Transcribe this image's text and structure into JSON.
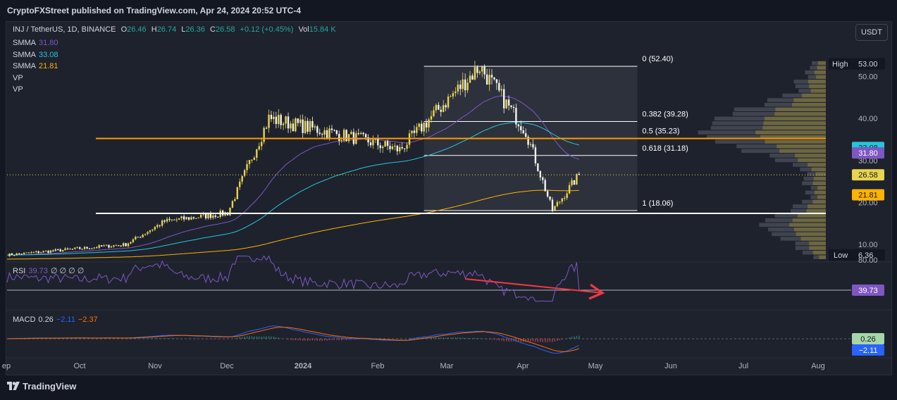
{
  "publisher": "CryptoFXStreet published on TradingView.com, Apr 24, 2024 20:52 UTC-4",
  "currency_button": "USDT",
  "footer": "TradingView",
  "legend": {
    "symbol": "INJ / TetherUS, 1D, BINANCE",
    "o_label": "O",
    "o": "26.46",
    "h_label": "H",
    "h": "26.74",
    "l_label": "L",
    "l": "26.36",
    "c_label": "C",
    "c": "26.58",
    "change": "+0.12 (+0.45%)",
    "vol_label": "Vol",
    "vol": "15.84 K",
    "indicators": [
      {
        "name": "SMMA",
        "value": "31.80",
        "color": "#7e57c2"
      },
      {
        "name": "SMMA",
        "value": "33.08",
        "color": "#26c6da"
      },
      {
        "name": "SMMA",
        "value": "21.81",
        "color": "#ffb300"
      },
      {
        "name": "VP",
        "value": ""
      },
      {
        "name": "VP",
        "value": ""
      }
    ],
    "rsi_label": "RSI",
    "rsi_value": "39.73",
    "rsi_extra": "∅ ∅ ∅ ∅",
    "macd_label": "MACD",
    "macd_values": [
      "0.26",
      "−2.11",
      "−2.37"
    ]
  },
  "colors": {
    "bull": "#e8d44d",
    "bear": "#f5f5f0",
    "smma_purple": "#7e57c2",
    "smma_teal": "#26c6da",
    "smma_orange": "#ffb300",
    "resistance": "#ff9800",
    "support": "#ffffff",
    "rsi": "#7e57c2",
    "macd": "#2962ff",
    "signal": "#ff6d00",
    "arrow": "#f23645"
  },
  "chart_data": {
    "type": "candlestick",
    "price_axis": {
      "ticks": [
        "50.00",
        "40.00",
        "30.00",
        "20.00",
        "10.00"
      ],
      "ylim": [
        6.36,
        53.0
      ]
    },
    "time_axis": [
      "ep",
      "Oct",
      "Nov",
      "Dec",
      "2024",
      "Feb",
      "Mar",
      "Apr",
      "May",
      "Jun",
      "Jul",
      "Aug"
    ],
    "high_label": "High",
    "high_value": "53.00",
    "low_label": "Low",
    "low_value": "6.36",
    "price_tags": [
      "33.08",
      "31.80",
      "26.58",
      "21.81"
    ],
    "current_price": 26.58,
    "key_price_path": [
      {
        "date": "2023-09-01",
        "price": 7.5
      },
      {
        "date": "2023-10-20",
        "price": 10.0
      },
      {
        "date": "2023-11-05",
        "price": 15.5
      },
      {
        "date": "2023-12-01",
        "price": 17.5
      },
      {
        "date": "2023-12-18",
        "price": 40.0
      },
      {
        "date": "2024-01-25",
        "price": 35.0
      },
      {
        "date": "2024-02-10",
        "price": 32.5
      },
      {
        "date": "2024-03-14",
        "price": 52.4
      },
      {
        "date": "2024-04-02",
        "price": 37.0
      },
      {
        "date": "2024-04-13",
        "price": 18.06
      },
      {
        "date": "2024-04-24",
        "price": 26.58
      }
    ],
    "horizontal_lines": [
      {
        "name": "resistance",
        "price": 35.23
      },
      {
        "name": "support",
        "price": 17.4
      }
    ],
    "fibonacci": {
      "from": "2024-02-20",
      "to": "2024-05-18",
      "levels": [
        {
          "label": "0 (52.40)",
          "price": 52.4
        },
        {
          "label": "0.382 (39.28)",
          "price": 39.28
        },
        {
          "label": "0.5 (35.23)",
          "price": 35.23
        },
        {
          "label": "0.618 (31.18)",
          "price": 31.18
        },
        {
          "label": "1 (18.06)",
          "price": 18.06
        }
      ]
    },
    "rsi": {
      "value": "39.73",
      "ticks": [
        "80.00"
      ],
      "divergence": "bearish"
    },
    "macd": {
      "macd": 0.26,
      "signal": -2.11,
      "tags": [
        "0.26",
        "−2.11"
      ]
    }
  }
}
